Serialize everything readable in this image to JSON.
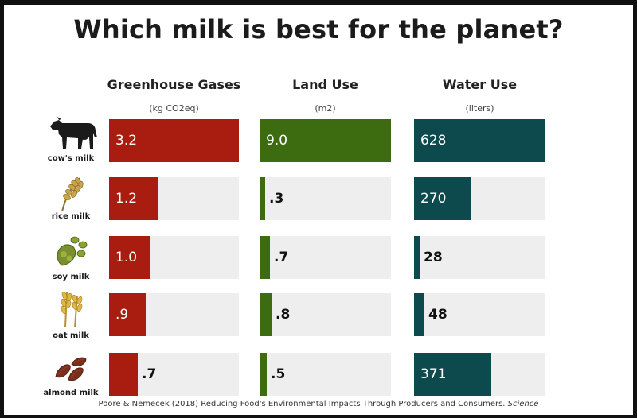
{
  "title": "Which milk is best for the planet?",
  "source": {
    "text": "Poore & Nemecek (2018) Reducing Food's Environmental Impacts Through Producers and Consumers.",
    "journal": "Science"
  },
  "chart_data": {
    "type": "bar",
    "title": "Which milk is best for the planet?",
    "categories": [
      "cow's milk",
      "rice milk",
      "soy milk",
      "oat milk",
      "almond milk"
    ],
    "series": [
      {
        "name": "Greenhouse Gases",
        "unit": "(kg CO2eq)",
        "color": "#a91c10",
        "labels": [
          "3.2",
          "1.2",
          "1.0",
          ".9",
          ".7"
        ],
        "values": [
          3.2,
          1.2,
          1.0,
          0.9,
          0.7
        ],
        "max": 3.2
      },
      {
        "name": "Land Use",
        "unit": "(m2)",
        "color": "#3d6b0f",
        "labels": [
          "9.0",
          ".3",
          ".7",
          ".8",
          ".5"
        ],
        "values": [
          9.0,
          0.3,
          0.7,
          0.8,
          0.5
        ],
        "max": 9.0
      },
      {
        "name": "Water Use",
        "unit": "(liters)",
        "color": "#0d4a4e",
        "labels": [
          "628",
          "270",
          "28",
          "48",
          "371"
        ],
        "values": [
          628,
          270,
          28,
          48,
          371
        ],
        "max": 628
      }
    ]
  },
  "icons": [
    "cow-icon",
    "rice-icon",
    "soybean-icon",
    "oat-icon",
    "almond-icon"
  ]
}
